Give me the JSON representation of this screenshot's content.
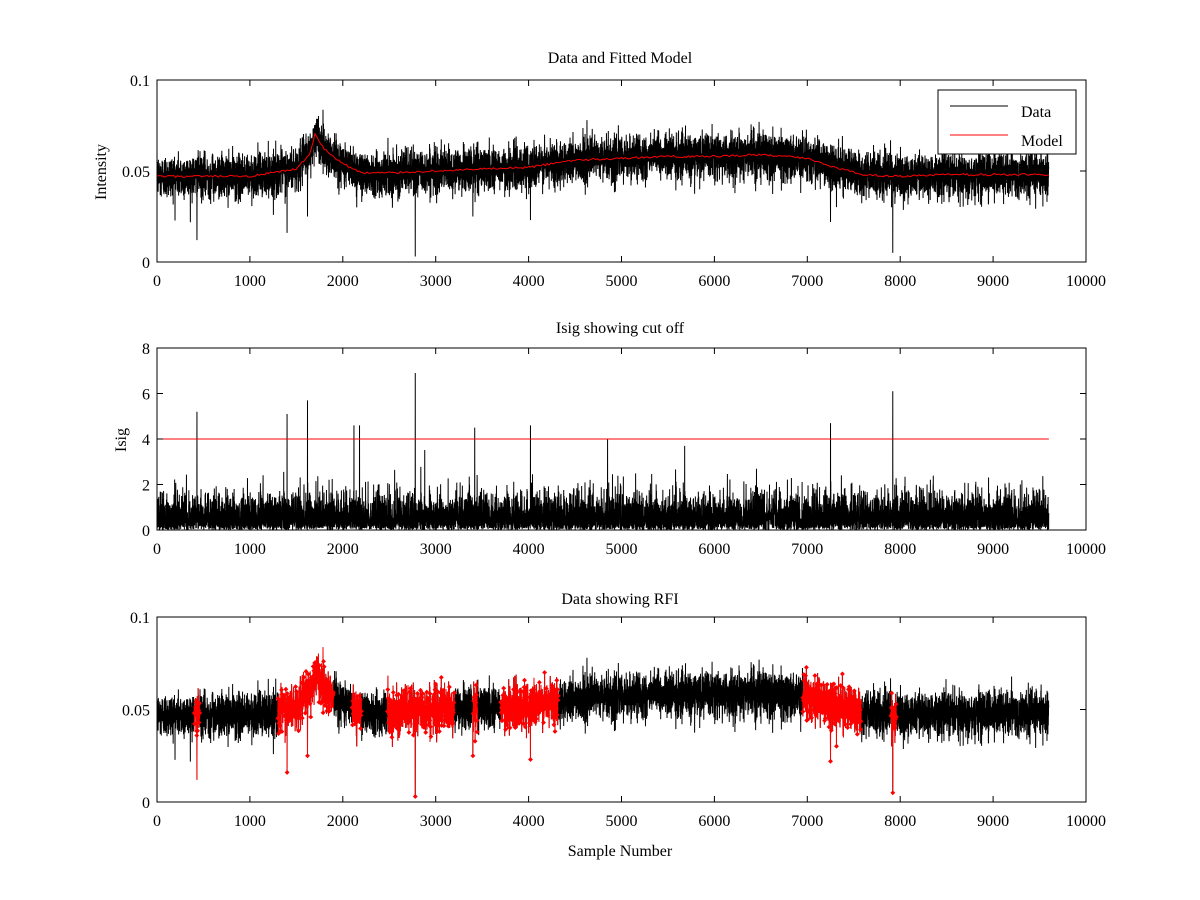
{
  "figure": {
    "background": "#ffffff"
  },
  "colors": {
    "data": "#000000",
    "model": "#ff0000",
    "rfi": "#ff0000",
    "cutoff": "#ff0000"
  },
  "chart_data": [
    {
      "type": "line",
      "title": "Data and Fitted Model",
      "xlabel": "",
      "ylabel": "Intensity",
      "xlim": [
        0,
        10000
      ],
      "ylim": [
        0,
        0.1
      ],
      "xticks": [
        0,
        1000,
        2000,
        3000,
        4000,
        5000,
        6000,
        7000,
        8000,
        9000,
        10000
      ],
      "xtick_labels": [
        "0",
        "1000",
        "2000",
        "3000",
        "4000",
        "5000",
        "6000",
        "7000",
        "8000",
        "9000",
        "10000"
      ],
      "yticks": [
        0,
        0.05,
        0.1
      ],
      "ytick_labels": [
        "0",
        "0.05",
        "0.1"
      ],
      "legend": {
        "position": "top-right",
        "entries": [
          "Data",
          "Model"
        ]
      },
      "series": [
        {
          "name": "Data",
          "kind": "noisy",
          "color": "#000000",
          "n": 9600,
          "baseline_x": [
            0,
            1000,
            1500,
            1650,
            1700,
            1800,
            2000,
            2200,
            2500,
            3000,
            3500,
            4000,
            4500,
            5000,
            5500,
            6000,
            6500,
            7000,
            7300,
            7600,
            8000,
            8500,
            9000,
            9600
          ],
          "baseline_y": [
            0.047,
            0.047,
            0.051,
            0.06,
            0.07,
            0.062,
            0.054,
            0.049,
            0.049,
            0.05,
            0.051,
            0.052,
            0.056,
            0.057,
            0.058,
            0.058,
            0.059,
            0.057,
            0.052,
            0.048,
            0.047,
            0.048,
            0.048,
            0.048
          ],
          "noise": 0.006,
          "spikes_x": [
            430,
            1400,
            1620,
            2150,
            2780,
            3400,
            4020,
            7250,
            7920
          ],
          "spikes_y": [
            0.012,
            0.016,
            0.025,
            0.03,
            0.003,
            0.025,
            0.023,
            0.022,
            0.005
          ]
        },
        {
          "name": "Model",
          "kind": "smooth",
          "color": "#ff0000",
          "x": [
            0,
            1000,
            1500,
            1650,
            1700,
            1800,
            2000,
            2200,
            2500,
            3000,
            3500,
            4000,
            4500,
            5000,
            5500,
            6000,
            6500,
            7000,
            7300,
            7600,
            8000,
            8500,
            9000,
            9600
          ],
          "y": [
            0.047,
            0.047,
            0.051,
            0.06,
            0.07,
            0.062,
            0.054,
            0.049,
            0.049,
            0.05,
            0.051,
            0.052,
            0.056,
            0.057,
            0.058,
            0.058,
            0.059,
            0.057,
            0.052,
            0.048,
            0.047,
            0.048,
            0.048,
            0.048
          ]
        }
      ]
    },
    {
      "type": "line",
      "title": "Isig showing cut off",
      "xlabel": "",
      "ylabel": "Isig",
      "xlim": [
        0,
        10000
      ],
      "ylim": [
        0,
        8
      ],
      "xticks": [
        0,
        1000,
        2000,
        3000,
        4000,
        5000,
        6000,
        7000,
        8000,
        9000,
        10000
      ],
      "xtick_labels": [
        "0",
        "1000",
        "2000",
        "3000",
        "4000",
        "5000",
        "6000",
        "7000",
        "8000",
        "9000",
        "10000"
      ],
      "yticks": [
        0,
        2,
        4,
        6,
        8
      ],
      "ytick_labels": [
        "0",
        "2",
        "4",
        "6",
        "8"
      ],
      "cutoff": 4,
      "series": [
        {
          "name": "Isig",
          "kind": "abs-noise",
          "color": "#000000",
          "n": 9600,
          "scale": 0.75,
          "spikes_x": [
            430,
            1400,
            1620,
            2120,
            2180,
            2780,
            3420,
            4020,
            4850,
            5680,
            7250,
            7920
          ],
          "spikes_y": [
            5.2,
            5.1,
            5.7,
            4.6,
            4.6,
            6.9,
            4.5,
            4.6,
            4.0,
            3.7,
            4.7,
            6.1
          ]
        },
        {
          "name": "Cut off",
          "kind": "hline",
          "color": "#ff0000",
          "x": [
            0,
            9600
          ],
          "y": [
            4,
            4
          ]
        }
      ]
    },
    {
      "type": "line",
      "title": "Data showing RFI",
      "xlabel": "Sample Number",
      "ylabel": "",
      "xlim": [
        0,
        10000
      ],
      "ylim": [
        0,
        0.1
      ],
      "xticks": [
        0,
        1000,
        2000,
        3000,
        4000,
        5000,
        6000,
        7000,
        8000,
        9000,
        10000
      ],
      "xtick_labels": [
        "0",
        "1000",
        "2000",
        "3000",
        "4000",
        "5000",
        "6000",
        "7000",
        "8000",
        "9000",
        "10000"
      ],
      "yticks": [
        0,
        0.05,
        0.1
      ],
      "ytick_labels": [
        "0",
        "0.05",
        "0.1"
      ],
      "rfi_segments": [
        [
          400,
          460
        ],
        [
          1300,
          1900
        ],
        [
          2100,
          2200
        ],
        [
          2480,
          3200
        ],
        [
          3400,
          3450
        ],
        [
          3700,
          4320
        ],
        [
          6950,
          7580
        ],
        [
          7900,
          7960
        ]
      ],
      "series": [
        {
          "name": "Data",
          "kind": "noisy",
          "color": "#000000",
          "n": 9600,
          "baseline_x": [
            0,
            1000,
            1500,
            1650,
            1700,
            1800,
            2000,
            2200,
            2500,
            3000,
            3500,
            4000,
            4500,
            5000,
            5500,
            6000,
            6500,
            7000,
            7300,
            7600,
            8000,
            8500,
            9000,
            9600
          ],
          "baseline_y": [
            0.047,
            0.047,
            0.051,
            0.06,
            0.07,
            0.062,
            0.054,
            0.049,
            0.049,
            0.05,
            0.051,
            0.052,
            0.056,
            0.057,
            0.058,
            0.058,
            0.059,
            0.057,
            0.052,
            0.048,
            0.047,
            0.048,
            0.048,
            0.048
          ],
          "noise": 0.006,
          "spikes_x": [
            430,
            1400,
            1620,
            2150,
            2780,
            3400,
            4020,
            7250,
            7920
          ],
          "spikes_y": [
            0.012,
            0.016,
            0.025,
            0.03,
            0.003,
            0.025,
            0.023,
            0.022,
            0.005
          ]
        }
      ]
    }
  ]
}
